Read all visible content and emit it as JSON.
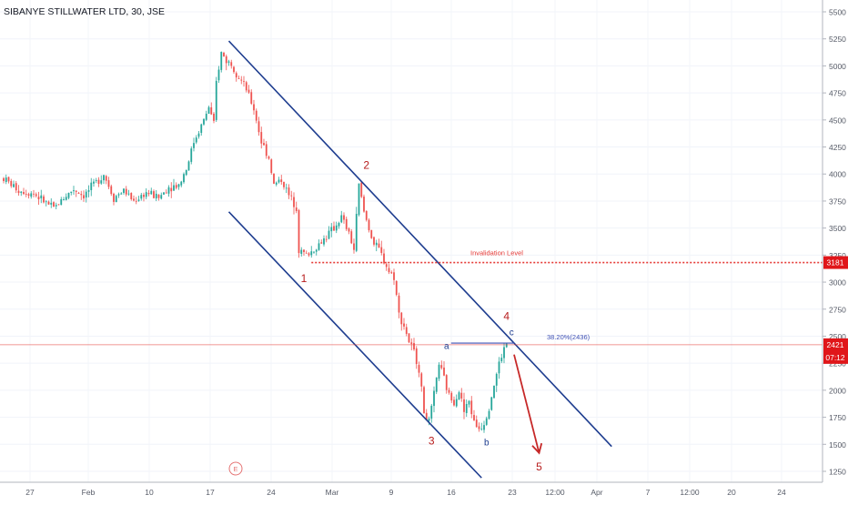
{
  "header": {
    "symbol_title": "SIBANYE STILLWATER LTD, 30, JSE"
  },
  "colors": {
    "up": "#26a69a",
    "down": "#ef5350",
    "channel": "#1e3d8f",
    "wave_red": "#b71c1c",
    "wave_blue": "#1e3d8f",
    "invalidation": "#e53935",
    "last_price": "#e53935",
    "fib": "#3f51b5"
  },
  "chart_data": {
    "type": "candlestick",
    "title": "SIBANYE STILLWATER LTD, 30, JSE",
    "y_axis": {
      "side": "right",
      "ticks": [
        1250,
        1500,
        1750,
        2000,
        2250,
        2500,
        2750,
        3000,
        3250,
        3500,
        3750,
        4000,
        4250,
        4500,
        4750,
        5000,
        5250,
        5500
      ],
      "range": [
        1170,
        5600
      ]
    },
    "x_axis": {
      "tick_labels": [
        "27",
        "Feb",
        "10",
        "17",
        "24",
        "Mar",
        "9",
        "16",
        "23",
        "12:00",
        "Apr",
        "7",
        "12:00",
        "20",
        "24"
      ]
    },
    "price_path": [
      {
        "t": 0,
        "p": 3960
      },
      {
        "t": 6,
        "p": 3850
      },
      {
        "t": 12,
        "p": 3820
      },
      {
        "t": 16,
        "p": 3750
      },
      {
        "t": 20,
        "p": 3680
      },
      {
        "t": 24,
        "p": 3780
      },
      {
        "t": 28,
        "p": 3860
      },
      {
        "t": 32,
        "p": 3800
      },
      {
        "t": 36,
        "p": 3900
      },
      {
        "t": 40,
        "p": 4000
      },
      {
        "t": 44,
        "p": 3780
      },
      {
        "t": 48,
        "p": 3850
      },
      {
        "t": 52,
        "p": 3750
      },
      {
        "t": 57,
        "p": 3830
      },
      {
        "t": 62,
        "p": 3780
      },
      {
        "t": 66,
        "p": 3880
      },
      {
        "t": 70,
        "p": 3900
      },
      {
        "t": 73,
        "p": 4050
      },
      {
        "t": 76,
        "p": 4300
      },
      {
        "t": 80,
        "p": 4500
      },
      {
        "t": 82,
        "p": 4620
      },
      {
        "t": 84,
        "p": 4450
      },
      {
        "t": 85,
        "p": 4850
      },
      {
        "t": 87,
        "p": 5120
      },
      {
        "t": 89,
        "p": 5050
      },
      {
        "t": 91,
        "p": 5020
      },
      {
        "t": 94,
        "p": 4900
      },
      {
        "t": 97,
        "p": 4780
      },
      {
        "t": 100,
        "p": 4600
      },
      {
        "t": 103,
        "p": 4300
      },
      {
        "t": 106,
        "p": 4150
      },
      {
        "t": 108,
        "p": 3900
      },
      {
        "t": 111,
        "p": 3950
      },
      {
        "t": 114,
        "p": 3800
      },
      {
        "t": 117,
        "p": 3700
      },
      {
        "t": 118,
        "p": 3300
      },
      {
        "t": 121,
        "p": 3250
      },
      {
        "t": 124,
        "p": 3300
      },
      {
        "t": 128,
        "p": 3400
      },
      {
        "t": 132,
        "p": 3500
      },
      {
        "t": 135,
        "p": 3600
      },
      {
        "t": 138,
        "p": 3450
      },
      {
        "t": 140,
        "p": 3300
      },
      {
        "t": 142,
        "p": 3900
      },
      {
        "t": 144,
        "p": 3650
      },
      {
        "t": 146,
        "p": 3500
      },
      {
        "t": 148,
        "p": 3350
      },
      {
        "t": 150,
        "p": 3300
      },
      {
        "t": 152,
        "p": 3200
      },
      {
        "t": 154,
        "p": 3100
      },
      {
        "t": 156,
        "p": 3050
      },
      {
        "t": 158,
        "p": 2700
      },
      {
        "t": 160,
        "p": 2600
      },
      {
        "t": 162,
        "p": 2450
      },
      {
        "t": 164,
        "p": 2350
      },
      {
        "t": 166,
        "p": 2200
      },
      {
        "t": 168,
        "p": 1800
      },
      {
        "t": 170,
        "p": 1700
      },
      {
        "t": 172,
        "p": 1950
      },
      {
        "t": 174,
        "p": 2250
      },
      {
        "t": 176,
        "p": 2100
      },
      {
        "t": 178,
        "p": 1950
      },
      {
        "t": 180,
        "p": 1900
      },
      {
        "t": 182,
        "p": 2000
      },
      {
        "t": 184,
        "p": 1800
      },
      {
        "t": 186,
        "p": 1900
      },
      {
        "t": 188,
        "p": 1700
      },
      {
        "t": 190,
        "p": 1650
      },
      {
        "t": 192,
        "p": 1700
      },
      {
        "t": 194,
        "p": 1850
      },
      {
        "t": 196,
        "p": 2050
      },
      {
        "t": 198,
        "p": 2250
      },
      {
        "t": 200,
        "p": 2380
      },
      {
        "t": 201,
        "p": 2430
      }
    ],
    "channel": {
      "upper": [
        {
          "t": 90,
          "p": 5230
        },
        {
          "t": 243,
          "p": 1480
        }
      ],
      "lower": [
        {
          "t": 90,
          "p": 3650
        },
        {
          "t": 191,
          "p": 1190
        }
      ]
    },
    "invalidation_level": {
      "value": 3181,
      "label": "Invalidation Level"
    },
    "last_price": {
      "value": 2421,
      "countdown": "07:12"
    },
    "fib_level": {
      "label": "38.20%(2436)",
      "value": 2436
    },
    "projection_arrow": {
      "from": {
        "t": 204,
        "p": 2330
      },
      "to": {
        "t": 214,
        "p": 1420
      }
    },
    "waves": [
      {
        "label": "1",
        "t": 120,
        "p": 3000,
        "color": "red"
      },
      {
        "label": "2",
        "t": 145,
        "p": 4050,
        "color": "red"
      },
      {
        "label": "3",
        "t": 171,
        "p": 1500,
        "color": "red"
      },
      {
        "label": "4",
        "t": 201,
        "p": 2650,
        "color": "red"
      },
      {
        "label": "5",
        "t": 214,
        "p": 1260,
        "color": "red"
      },
      {
        "label": "a",
        "t": 177,
        "p": 2380,
        "color": "blue"
      },
      {
        "label": "b",
        "t": 193,
        "p": 1490,
        "color": "blue"
      },
      {
        "label": "c",
        "t": 203,
        "p": 2510,
        "color": "blue"
      }
    ],
    "event_marker": "E"
  }
}
